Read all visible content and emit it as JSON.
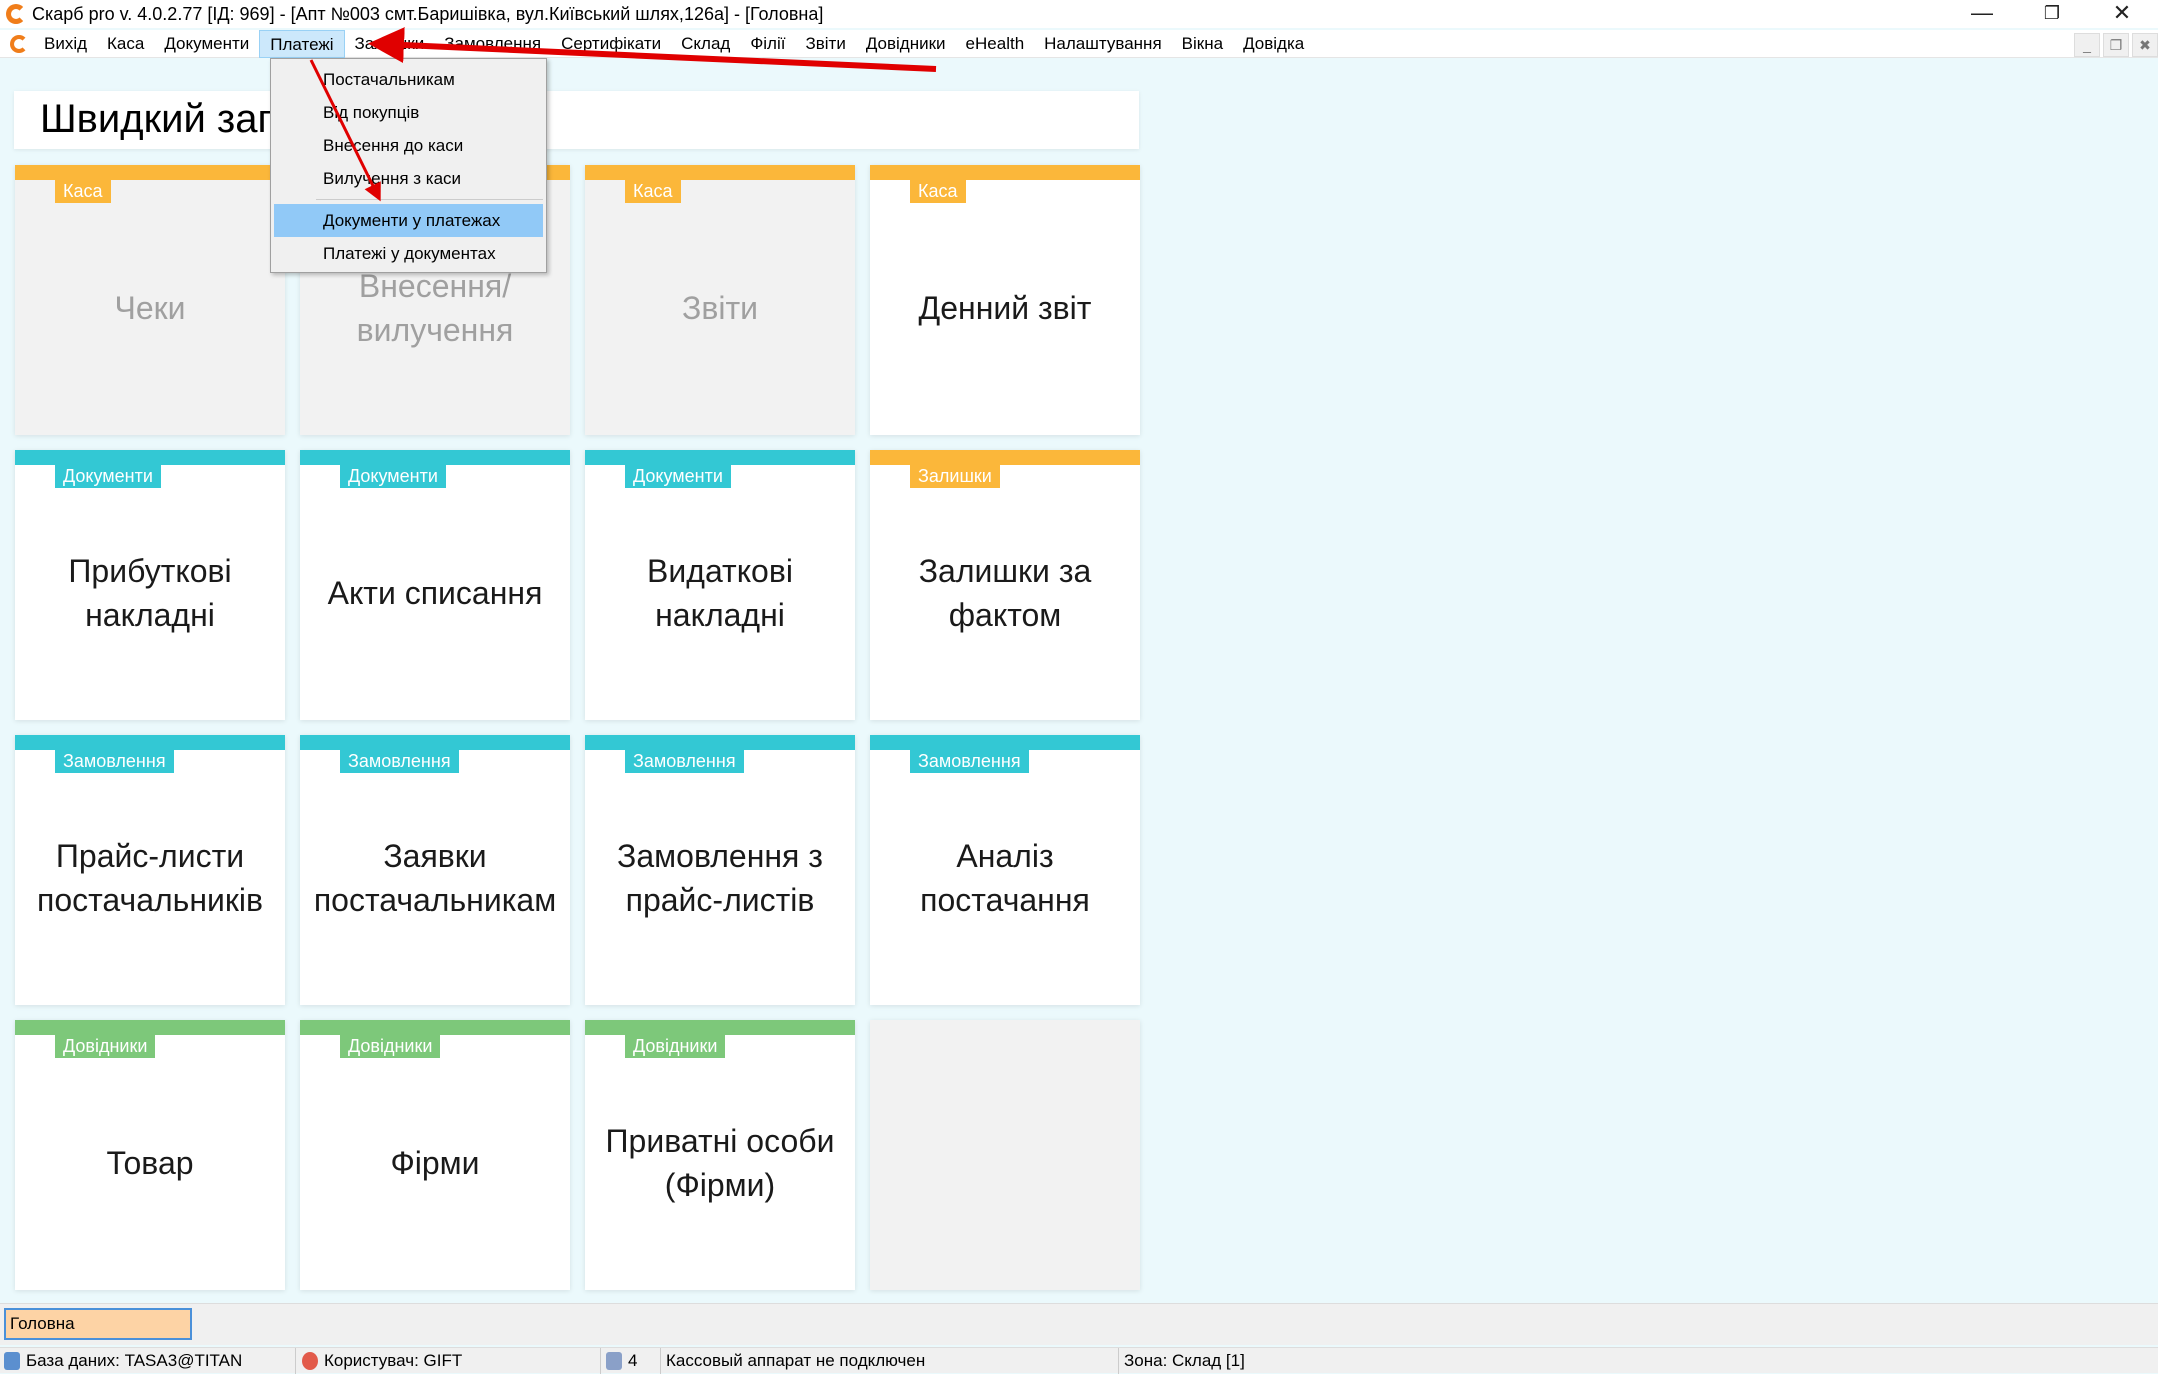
{
  "window": {
    "title": "Скарб pro v. 4.0.2.77 [ІД: 969] - [Апт №003 смт.Баришівка, вул.Київський шлях,126а] - [Головна]"
  },
  "menu": [
    "Вихід",
    "Каса",
    "Документи",
    "Платежі",
    "Залишки",
    "Замовлення",
    "Сертифікати",
    "Склад",
    "Філії",
    "Звіти",
    "Довідники",
    "eHealth",
    "Налаштування",
    "Вікна",
    "Довідка"
  ],
  "active_menu": "Платежі",
  "dropdown": {
    "items": [
      "Постачальникам",
      "Від покупців",
      "Внесення до каси",
      "Вилучення з каси",
      "Документи у платежах",
      "Платежі у документах"
    ],
    "highlighted": "Документи у платежах"
  },
  "heading": "Швидкий запуск",
  "colors": {
    "Каса": "#fbb73a",
    "Документи": "#33c8d4",
    "Залишки": "#fbb73a",
    "Замовлення": "#33c8d4",
    "Довідники": "#7dc87a",
    "annotation": "#e00000"
  },
  "tiles": [
    {
      "category": "Каса",
      "label": "Чеки",
      "disabled": true
    },
    {
      "category": "Каса",
      "label": "Внесення/вилучення",
      "disabled": true
    },
    {
      "category": "Каса",
      "label": "Звіти",
      "disabled": true
    },
    {
      "category": "Каса",
      "label": "Денний звіт",
      "disabled": false
    },
    {
      "category": "Документи",
      "label": "Прибуткові накладні",
      "disabled": false
    },
    {
      "category": "Документи",
      "label": "Акти списання",
      "disabled": false
    },
    {
      "category": "Документи",
      "label": "Видаткові накладні",
      "disabled": false
    },
    {
      "category": "Залишки",
      "label": "Залишки за фактом",
      "disabled": false
    },
    {
      "category": "Замовлення",
      "label": "Прайс-листи постачальників",
      "disabled": false
    },
    {
      "category": "Замовлення",
      "label": "Заявки постачальникам",
      "disabled": false
    },
    {
      "category": "Замовлення",
      "label": "Замовлення з прайс-листів",
      "disabled": false
    },
    {
      "category": "Замовлення",
      "label": "Аналіз постачання",
      "disabled": false
    },
    {
      "category": "Довідники",
      "label": "Товар",
      "disabled": false
    },
    {
      "category": "Довідники",
      "label": "Фірми",
      "disabled": false
    },
    {
      "category": "Довідники",
      "label": "Приватні особи (Фірми)",
      "disabled": false
    }
  ],
  "tabs": [
    "Головна"
  ],
  "status": {
    "database": "База даних: TASA3@TITAN",
    "user": "Користувач: GIFT",
    "count": "4",
    "device": "Кассовый аппарат не подключен",
    "zone": "Зона: Склад [1]"
  }
}
